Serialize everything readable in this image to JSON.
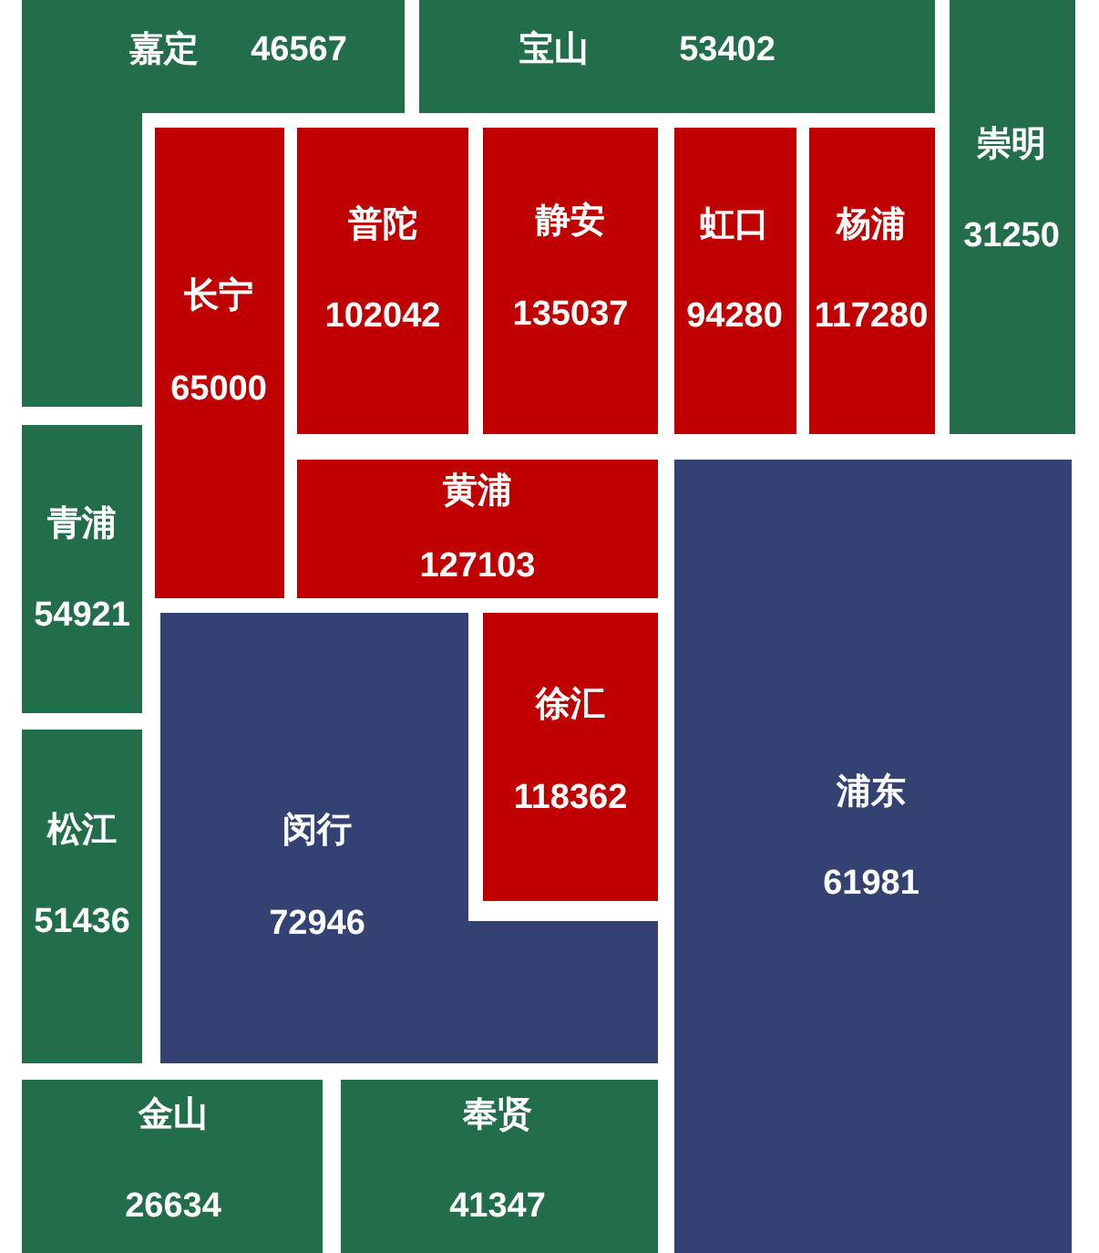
{
  "chart_data": {
    "type": "other",
    "data_labels": true,
    "categories": [
      "嘉定",
      "宝山",
      "崇明",
      "长宁",
      "普陀",
      "静安",
      "虹口",
      "杨浦",
      "黄浦",
      "青浦",
      "松江",
      "闵行",
      "徐汇",
      "浦东",
      "金山",
      "奉贤"
    ],
    "values": [
      46567,
      53402,
      31250,
      65000,
      102042,
      135037,
      94280,
      117280,
      127103,
      54921,
      51436,
      72946,
      118362,
      61981,
      26634,
      41347
    ],
    "colors": [
      "#226e4b",
      "#226e4b",
      "#226e4b",
      "#c00000",
      "#c00000",
      "#c00000",
      "#c00000",
      "#c00000",
      "#c00000",
      "#226e4b",
      "#226e4b",
      "#344273",
      "#c00000",
      "#344273",
      "#226e4b",
      "#226e4b"
    ]
  }
}
